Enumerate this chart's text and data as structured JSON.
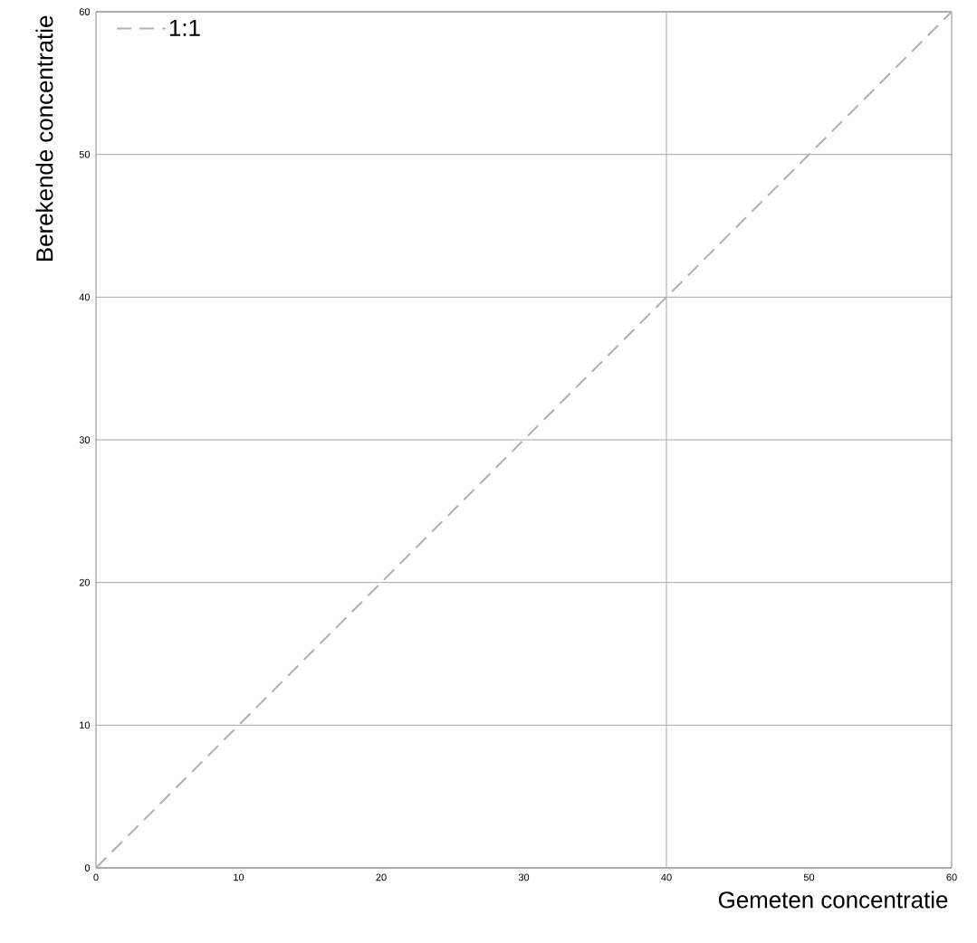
{
  "chart_data": {
    "type": "line",
    "xlabel": "Gemeten concentratie",
    "ylabel": "Berekende concentratie",
    "x": [
      0,
      60
    ],
    "series": [
      {
        "name": "1:1",
        "color": "#b0b0b0",
        "values": [
          0,
          60
        ]
      }
    ],
    "xlim": [
      0,
      60
    ],
    "ylim": [
      0,
      60
    ],
    "xticks": [
      0,
      10,
      20,
      30,
      40,
      50,
      60
    ],
    "yticks": [
      0,
      10,
      20,
      30,
      40,
      50,
      60
    ],
    "grid": "y",
    "legend": "top left",
    "marker": "none",
    "line_style": "dashed",
    "ref_lines": [
      {
        "axis": "x",
        "value": 40,
        "color": "#a6a6a6"
      }
    ]
  }
}
